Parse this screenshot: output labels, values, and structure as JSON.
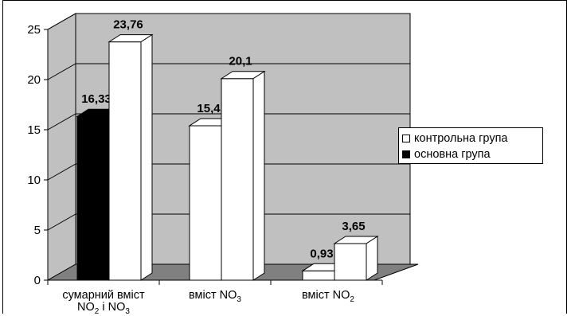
{
  "chart_data": {
    "type": "bar",
    "categories": [
      "сумарний вміст NO₂ і NO₃",
      "вміст NO₃",
      "вміст NO₂"
    ],
    "series": [
      {
        "name": "основна група",
        "color": "#000000",
        "values": [
          16.33,
          null,
          null
        ]
      },
      {
        "name": "контрольна група",
        "color": "#ffffff",
        "values": [
          23.76,
          15.4,
          0.93
        ]
      },
      {
        "name": "",
        "color": "#ffffff",
        "values": [
          null,
          20.1,
          3.65
        ]
      }
    ],
    "data_labels": [
      [
        "16,33",
        "",
        ""
      ],
      [
        "23,76",
        "15,4",
        "0,93"
      ],
      [
        "",
        "20,1",
        "3,65"
      ]
    ],
    "yticks": [
      "0",
      "5",
      "10",
      "15",
      "20",
      "25"
    ],
    "ylim": [
      0,
      25
    ],
    "grid": true,
    "legend_position": "right",
    "wall_color": "#c0c0c0",
    "floor_color": "#808080"
  },
  "legend": [
    {
      "label": "контрольна група",
      "color": "#ffffff"
    },
    {
      "label": "основна група",
      "color": "#000000"
    }
  ],
  "x_labels": [
    {
      "line1": "сумарний вміст",
      "l2a": "NO",
      "l2b": "2",
      "l2c": " і NO",
      "l2d": "3"
    },
    {
      "line1": "вміст NO",
      "sub": "3"
    },
    {
      "line1": "вміст NO",
      "sub": "2"
    }
  ]
}
